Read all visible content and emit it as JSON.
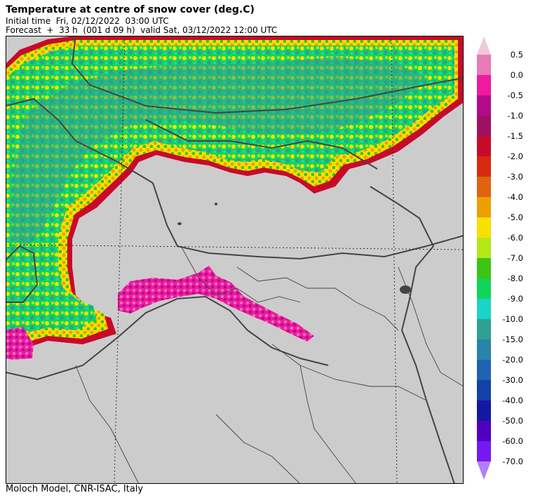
{
  "header": {
    "title": "Temperature at centre of snow cover (deg.C)",
    "initial_time": "Initial time  Fri, 02/12/2022  03:00 UTC",
    "forecast": "Forecast  +  33 h  (001 d 09 h)  valid Sat, 03/12/2022 12:00 UTC"
  },
  "footer": "Moloch Model, CNR-ISAC, Italy",
  "legend": {
    "labels": [
      "0.5",
      "0.0",
      "-0.5",
      "-1.0",
      "-1.5",
      "-2.0",
      "-3.0",
      "-4.0",
      "-5.0",
      "-6.0",
      "-7.0",
      "-8.0",
      "-9.0",
      "-10.0",
      "-15.0",
      "-20.0",
      "-30.0",
      "-40.0",
      "-50.0",
      "-60.0",
      "-70.0"
    ],
    "colors": [
      "#e87ab6",
      "#ee1aa0",
      "#b40a8a",
      "#a01060",
      "#c80a2a",
      "#d82a10",
      "#e06410",
      "#eca000",
      "#f8e000",
      "#b4e81a",
      "#3cc414",
      "#12d45a",
      "#1ad4c8",
      "#30a090",
      "#2884a8",
      "#1e64b0",
      "#1440a8",
      "#1418a0",
      "#5000c0",
      "#7818f0"
    ],
    "top_arrow_color": "#f0c8dc",
    "bottom_arrow_color": "#b080f8"
  },
  "map": {
    "background": "#cccccc",
    "border_color": "#444444"
  }
}
